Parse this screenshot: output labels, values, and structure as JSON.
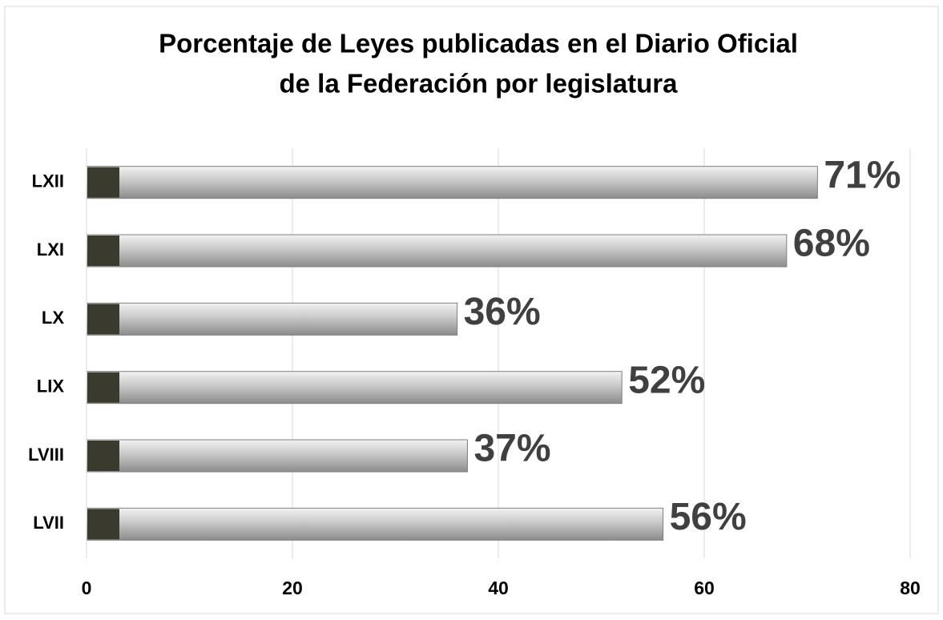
{
  "chart_data": {
    "type": "barh",
    "title": [
      "Porcentaje de Leyes publicadas en el Diario Oficial",
      "de la Federación por legislatura"
    ],
    "categories": [
      "LXII",
      "LXI",
      "LX",
      "LIX",
      "LVIII",
      "LVII"
    ],
    "values": [
      71,
      68,
      36,
      52,
      37,
      56
    ],
    "value_labels": [
      "71%",
      "68%",
      "36%",
      "52%",
      "37%",
      "56%"
    ],
    "color": "#bfbfbf",
    "xlim": [
      0,
      80
    ],
    "xticks": [
      0,
      20,
      40,
      60,
      80
    ],
    "grid": true
  }
}
